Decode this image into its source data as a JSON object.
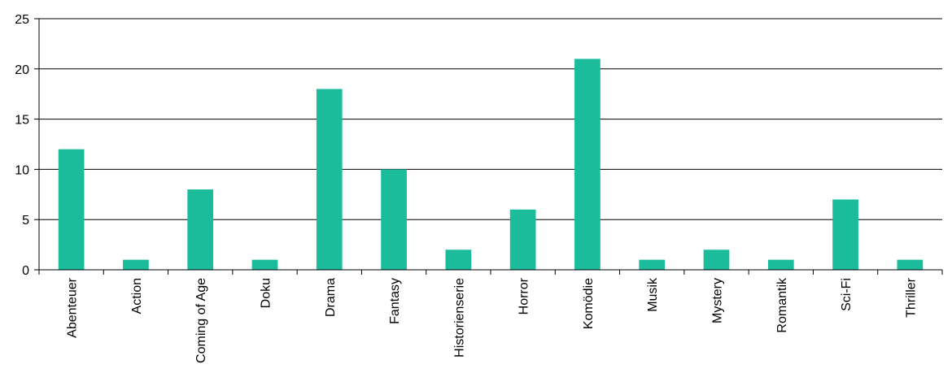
{
  "chart_data": {
    "type": "bar",
    "title": "",
    "xlabel": "",
    "ylabel": "",
    "categories": [
      "Abenteuer",
      "Action",
      "Coming of Age",
      "Doku",
      "Drama",
      "Fantasy",
      "Historienserie",
      "Horror",
      "Komödie",
      "Musik",
      "Mystery",
      "Romantik",
      "Sci-Fi",
      "Thriller"
    ],
    "values": [
      12,
      1,
      8,
      1,
      18,
      10,
      2,
      6,
      21,
      1,
      2,
      1,
      7,
      1
    ],
    "ylim": [
      0,
      25
    ],
    "yticks": [
      "0",
      "5",
      "10",
      "15",
      "20",
      "25"
    ],
    "grid": true,
    "legend": "none",
    "bar_color": "#1abc9c"
  }
}
